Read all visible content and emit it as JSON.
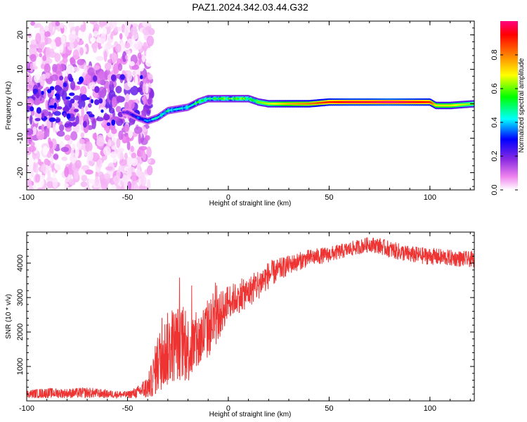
{
  "chart_data": [
    {
      "type": "heatmap",
      "title": "PAZ1.2024.342.03.44.G32",
      "xlabel": "Height of straight line (km)",
      "ylabel": "Frequency (Hz)",
      "xlim": [
        -100,
        122
      ],
      "ylim": [
        -25,
        24
      ],
      "xticks": [
        -100,
        -50,
        0,
        50,
        100
      ],
      "yticks": [
        -20,
        -10,
        0,
        10,
        20
      ],
      "grid": false,
      "colorbar": {
        "label": "Normalized spectral amplitude",
        "range": [
          0,
          1
        ],
        "ticks": [
          "0.0",
          "0.2",
          "0.4",
          "0.6",
          "0.8"
        ],
        "colors": [
          "#ffffff",
          "#ee82ee",
          "#8a2be2",
          "#0000ff",
          "#00ffff",
          "#00ff00",
          "#ffff00",
          "#ff8000",
          "#ff0000",
          "#ff0080"
        ]
      },
      "ridge": {
        "description_points_x": [
          -50,
          -45,
          -40,
          -35,
          -30,
          -25,
          -20,
          -15,
          -10,
          -5,
          0,
          5,
          10,
          15,
          20,
          25,
          30,
          40,
          50,
          60,
          70,
          80,
          90,
          100,
          103,
          110,
          122
        ],
        "frequency_hz": [
          -2.5,
          -4,
          -5,
          -4,
          -2,
          -1.5,
          -1,
          0.5,
          1.5,
          1.5,
          1.5,
          1.5,
          1.5,
          0.5,
          0,
          0,
          0,
          0,
          0.5,
          0.5,
          0.5,
          0.5,
          0.5,
          0.5,
          -0.5,
          -0.5,
          0
        ],
        "amplitude": [
          0.2,
          0.3,
          0.35,
          0.4,
          0.45,
          0.4,
          0.45,
          0.5,
          0.5,
          0.5,
          0.55,
          0.55,
          0.55,
          0.6,
          0.65,
          0.7,
          0.75,
          0.8,
          0.9,
          0.95,
          0.95,
          1.0,
          0.95,
          0.9,
          0.7,
          0.7,
          0.6
        ]
      }
    },
    {
      "type": "line",
      "xlabel": "Height of straight line (km)",
      "ylabel": "SNR (10 * v/v)",
      "xlim": [
        -100,
        122
      ],
      "ylim": [
        0,
        4900
      ],
      "xticks": [
        -100,
        -50,
        0,
        50,
        100
      ],
      "yticks": [
        1000,
        2000,
        3000,
        4000
      ],
      "color": "#ee3333",
      "grid": false,
      "envelope": {
        "x": [
          -100,
          -90,
          -80,
          -70,
          -60,
          -50,
          -45,
          -40,
          -38,
          -35,
          -30,
          -25,
          -20,
          -15,
          -10,
          -5,
          0,
          5,
          10,
          15,
          20,
          30,
          40,
          50,
          60,
          70,
          75,
          80,
          90,
          100,
          110,
          122
        ],
        "mean": [
          200,
          230,
          220,
          240,
          200,
          180,
          250,
          400,
          600,
          1100,
          1500,
          1700,
          1500,
          1700,
          2100,
          2400,
          2900,
          3000,
          3150,
          3400,
          3650,
          3950,
          4150,
          4250,
          4400,
          4550,
          4500,
          4400,
          4250,
          4200,
          4150,
          4100
        ],
        "amplitude": [
          120,
          150,
          140,
          160,
          120,
          100,
          180,
          350,
          500,
          900,
          1100,
          1100,
          1000,
          900,
          900,
          700,
          500,
          450,
          450,
          450,
          400,
          280,
          250,
          230,
          220,
          220,
          240,
          250,
          250,
          250,
          240,
          230
        ]
      }
    }
  ]
}
